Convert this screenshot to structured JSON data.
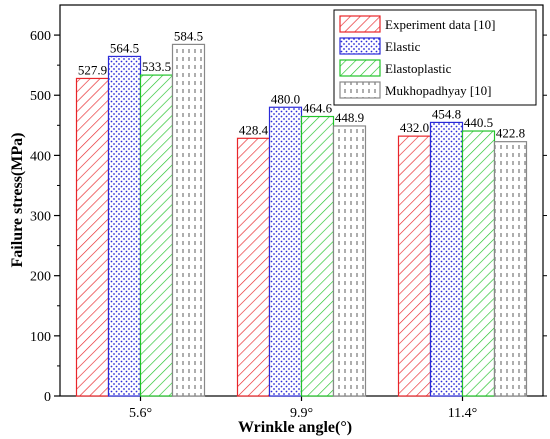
{
  "chart_data": {
    "type": "bar",
    "xlabel": "Wrinkle angle(°)",
    "ylabel": "Failure stress(MPa)",
    "ylim": [
      0,
      650
    ],
    "yticks": [
      "0",
      "100",
      "200",
      "300",
      "400",
      "500",
      "600"
    ],
    "categories": [
      "5.6°",
      "9.9°",
      "11.4°"
    ],
    "series": [
      {
        "name": "Experiment data [10]",
        "values": [
          527.9,
          428.4,
          432.0
        ],
        "labels": [
          "527.9",
          "428.4",
          "432.0"
        ],
        "color": "#e8262a",
        "pattern": "diagonal-hatch"
      },
      {
        "name": "Elastic",
        "values": [
          564.5,
          480.0,
          454.8
        ],
        "labels": [
          "564.5",
          "480.0",
          "454.8"
        ],
        "color": "#2b2bd8",
        "pattern": "dots"
      },
      {
        "name": "Elastoplastic",
        "values": [
          533.5,
          464.6,
          440.5
        ],
        "labels": [
          "533.5",
          "464.6",
          "440.5"
        ],
        "color": "#22c32a",
        "pattern": "diagonal-hatch"
      },
      {
        "name": "Mukhopadhyay [10]",
        "values": [
          584.5,
          448.9,
          422.8
        ],
        "labels": [
          "584.5",
          "448.9",
          "422.8"
        ],
        "color": "#888888",
        "pattern": "vertical-dashes"
      }
    ],
    "grid": false,
    "legend_position": "top-right"
  }
}
